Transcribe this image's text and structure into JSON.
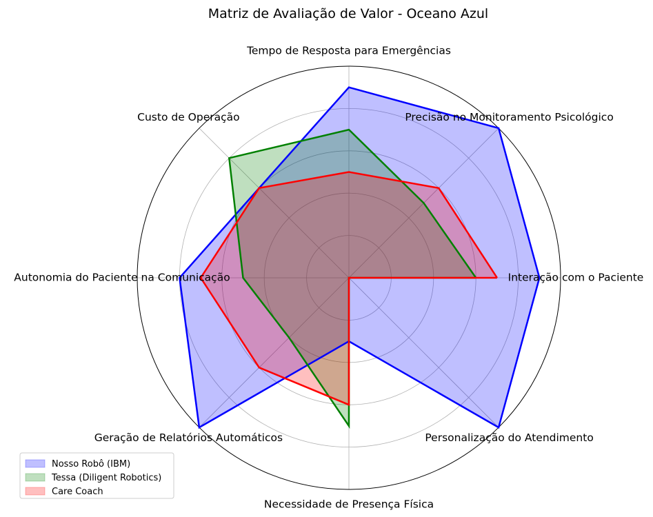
{
  "chart_data": {
    "type": "radar",
    "title": "Matriz de Avaliação de Valor - Oceano Azul",
    "categories": [
      "Interação com o Paciente",
      "Precisão no Monitoramento Psicológico",
      "Tempo de Resposta para Emergências",
      "Custo de Operação",
      "Autonomia do Paciente na Comunicação",
      "Geração de Relatórios Automáticos",
      "Necessidade de Presença Física",
      "Personalização do Atendimento"
    ],
    "rlim": [
      0,
      10
    ],
    "rgrid": [
      2,
      4,
      6,
      8
    ],
    "grid": true,
    "legend_position": "lower-left",
    "series": [
      {
        "name": "Nosso Robô (IBM)",
        "color": "#0000ff",
        "values": [
          9,
          10,
          9,
          6,
          8,
          10,
          3,
          10
        ]
      },
      {
        "name": "Tessa (Diligent Robotics)",
        "color": "#008000",
        "values": [
          6,
          5,
          7,
          8,
          5,
          4,
          7,
          0
        ]
      },
      {
        "name": "Care Coach",
        "color": "#ff0000",
        "values": [
          7,
          6,
          5,
          6,
          7,
          6,
          6,
          0
        ]
      }
    ]
  }
}
